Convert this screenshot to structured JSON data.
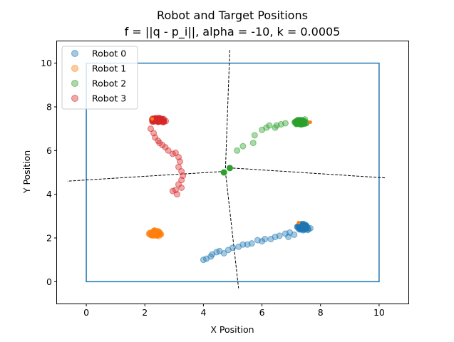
{
  "chart_data": {
    "type": "scatter",
    "title_line1": "Robot and Target Positions",
    "title_line2": "f = ||q - p_i||, alpha = -10, k = 0.0005",
    "xlabel": "X Position",
    "ylabel": "Y Position",
    "xlim": [
      -1,
      11
    ],
    "ylim": [
      -1,
      11
    ],
    "xticks": [
      0,
      2,
      4,
      6,
      8,
      10
    ],
    "yticks": [
      0,
      2,
      4,
      6,
      8,
      10
    ],
    "grid": false,
    "legend_position": "top-left",
    "boundary": [
      [
        0,
        0
      ],
      [
        10,
        0
      ],
      [
        10,
        10
      ],
      [
        0,
        10
      ]
    ],
    "boundary_color": "#1f77b4",
    "partition_lines": [
      [
        [
          4.9,
          10.6
        ],
        [
          4.75,
          5.05
        ]
      ],
      [
        [
          4.75,
          5.05
        ],
        [
          5.2,
          -0.3
        ]
      ],
      [
        [
          4.75,
          5.05
        ],
        [
          -0.65,
          4.6
        ]
      ],
      [
        [
          5.0,
          5.2
        ],
        [
          10.2,
          4.75
        ]
      ]
    ],
    "series": [
      {
        "name": "Robot 0",
        "color": "#1f77b4",
        "trail": [
          [
            4.0,
            1.0
          ],
          [
            4.1,
            1.05
          ],
          [
            4.25,
            1.15
          ],
          [
            4.3,
            1.25
          ],
          [
            4.45,
            1.35
          ],
          [
            4.55,
            1.4
          ],
          [
            4.7,
            1.3
          ],
          [
            4.85,
            1.45
          ],
          [
            5.0,
            1.55
          ],
          [
            5.2,
            1.6
          ],
          [
            5.35,
            1.7
          ],
          [
            5.5,
            1.7
          ],
          [
            5.65,
            1.75
          ],
          [
            5.85,
            1.9
          ],
          [
            6.0,
            1.85
          ],
          [
            6.1,
            1.95
          ],
          [
            6.3,
            1.95
          ],
          [
            6.45,
            2.05
          ],
          [
            6.6,
            2.1
          ],
          [
            6.8,
            2.2
          ],
          [
            6.95,
            2.25
          ],
          [
            6.9,
            2.05
          ],
          [
            7.1,
            2.15
          ]
        ],
        "cluster": {
          "center": [
            7.4,
            2.5
          ],
          "spread": [
            0.35,
            0.22
          ],
          "count": 90
        },
        "target": [
          7.25,
          2.7
        ],
        "final": null
      },
      {
        "name": "Robot 1",
        "color": "#ff7f0e",
        "trail": [],
        "cluster": {
          "center": [
            2.35,
            2.2
          ],
          "spread": [
            0.38,
            0.2
          ],
          "count": 90
        },
        "target": [
          2.3,
          2.35
        ],
        "final": null
      },
      {
        "name": "Robot 2",
        "color": "#2ca02c",
        "trail": [
          [
            5.15,
            6.0
          ],
          [
            5.35,
            6.2
          ],
          [
            5.7,
            6.35
          ],
          [
            5.75,
            6.7
          ],
          [
            6.0,
            6.95
          ],
          [
            6.15,
            7.05
          ],
          [
            6.25,
            7.15
          ],
          [
            6.45,
            7.05
          ],
          [
            6.5,
            7.15
          ],
          [
            6.65,
            7.2
          ],
          [
            6.8,
            7.25
          ]
        ],
        "cluster": {
          "center": [
            7.3,
            7.3
          ],
          "spread": [
            0.4,
            0.2
          ],
          "count": 90
        },
        "target": [
          7.65,
          7.3
        ],
        "final": [
          [
            4.7,
            5.0
          ],
          [
            4.9,
            5.2
          ]
        ]
      },
      {
        "name": "Robot 3",
        "color": "#d62728",
        "trail": [
          [
            2.2,
            7.0
          ],
          [
            2.3,
            6.8
          ],
          [
            2.35,
            6.6
          ],
          [
            2.45,
            6.45
          ],
          [
            2.5,
            6.35
          ],
          [
            2.6,
            6.25
          ],
          [
            2.7,
            6.15
          ],
          [
            2.8,
            6.0
          ],
          [
            2.95,
            5.85
          ],
          [
            3.05,
            5.9
          ],
          [
            3.15,
            5.7
          ],
          [
            3.2,
            5.5
          ],
          [
            3.15,
            5.25
          ],
          [
            3.25,
            5.05
          ],
          [
            3.3,
            4.85
          ],
          [
            3.25,
            4.65
          ],
          [
            3.15,
            4.45
          ],
          [
            3.05,
            4.2
          ],
          [
            2.95,
            4.15
          ],
          [
            3.1,
            4.0
          ],
          [
            3.25,
            4.3
          ]
        ],
        "cluster": {
          "center": [
            2.45,
            7.4
          ],
          "spread": [
            0.4,
            0.15
          ],
          "count": 90
        },
        "target": [
          2.25,
          7.45
        ],
        "final": null
      }
    ]
  }
}
